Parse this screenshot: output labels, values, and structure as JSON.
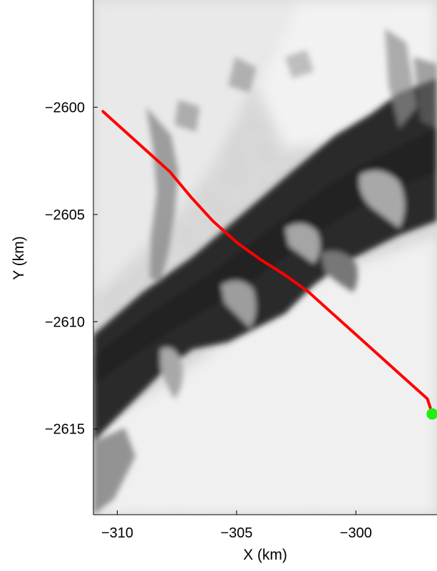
{
  "map": {
    "axes": {
      "xlabel": "X (km)",
      "ylabel": "Y (km)",
      "xlim": [
        -311,
        -296.6
      ],
      "ylim": [
        -2619,
        -2595
      ],
      "x_ticks": [
        -310,
        -305,
        -300
      ],
      "y_ticks": [
        -2600,
        -2605,
        -2610,
        -2615
      ],
      "x_tick_labels": [
        "−310",
        "−305",
        "−300"
      ],
      "y_tick_labels": [
        "−2600",
        "−2605",
        "−2610",
        "−2615"
      ]
    },
    "basemap": "grayscale satellite imagery of glacier terrain",
    "track": {
      "color": "#ff0000",
      "points": [
        [
          -310.6,
          -2600.2
        ],
        [
          -309.7,
          -2601.1
        ],
        [
          -308.8,
          -2602.0
        ],
        [
          -307.8,
          -2603.0
        ],
        [
          -306.9,
          -2604.2
        ],
        [
          -306.0,
          -2605.3
        ],
        [
          -305.0,
          -2606.3
        ],
        [
          -304.0,
          -2607.1
        ],
        [
          -303.0,
          -2607.8
        ],
        [
          -302.0,
          -2608.6
        ],
        [
          -301.0,
          -2609.6
        ],
        [
          -300.0,
          -2610.6
        ],
        [
          -299.0,
          -2611.6
        ],
        [
          -298.0,
          -2612.6
        ],
        [
          -297.0,
          -2613.6
        ],
        [
          -296.8,
          -2614.3
        ]
      ]
    },
    "endpoint": {
      "x": -296.8,
      "y": -2614.3,
      "color": "#22ee11"
    }
  }
}
